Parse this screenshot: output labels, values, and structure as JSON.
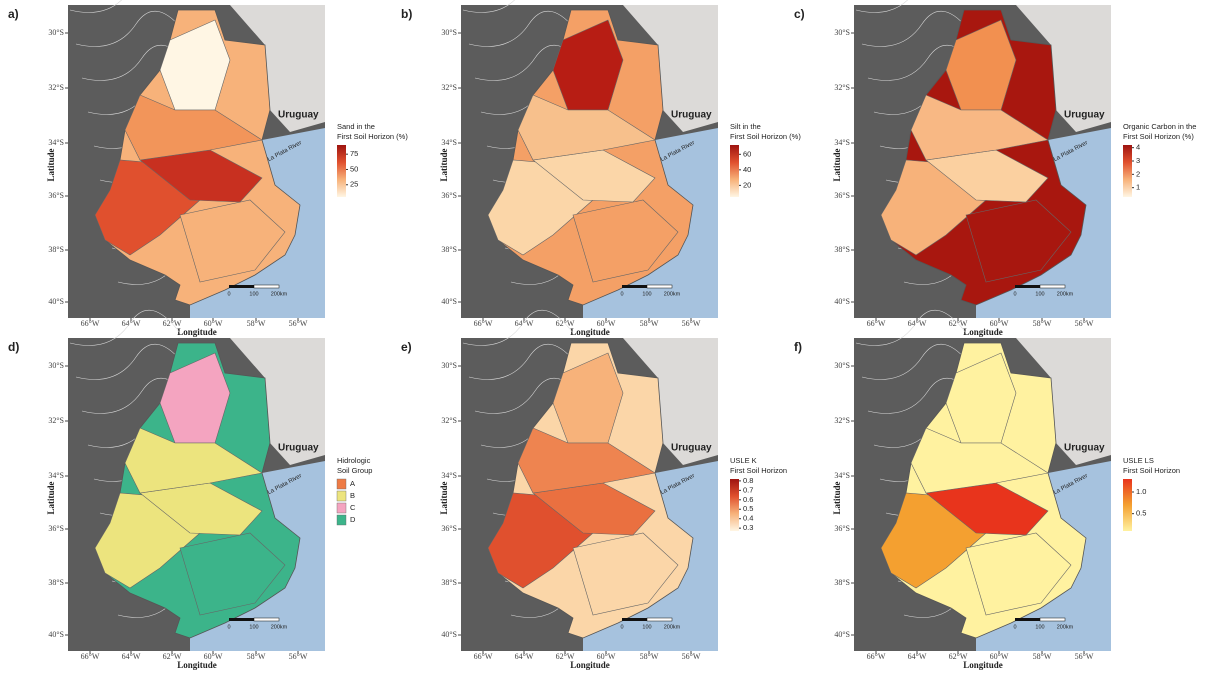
{
  "axes": {
    "lat_ticks": [
      "30°S",
      "32°S",
      "34°S",
      "36°S",
      "38°S",
      "40°S"
    ],
    "lon_ticks": [
      "66°W",
      "64°W",
      "62°W",
      "60°W",
      "58°W",
      "56°W"
    ],
    "ylabel": "Latitude",
    "xlabel": "Longitude",
    "country": "Uruguay",
    "river": "La Plata River",
    "scale": [
      "0",
      "100",
      "200km"
    ]
  },
  "panels": [
    {
      "letter": "a)",
      "legend": {
        "type": "gradient",
        "title": [
          "Sand in the",
          "First Soil Horizon (%)"
        ],
        "colors": [
          "#fff6e4",
          "#f7b27a",
          "#e0502e",
          "#9e1410"
        ],
        "lim": [
          5,
          90
        ],
        "ticks": [
          75,
          50,
          25
        ]
      }
    },
    {
      "letter": "b)",
      "legend": {
        "type": "gradient",
        "title": [
          "Silt in the",
          "First Soil Horizon (%)"
        ],
        "colors": [
          "#fff6e4",
          "#f7b27a",
          "#e0502e",
          "#9e1410"
        ],
        "lim": [
          5,
          72
        ],
        "ticks": [
          60,
          40,
          20
        ]
      }
    },
    {
      "letter": "c)",
      "legend": {
        "type": "gradient",
        "title": [
          "Organic Carbon in the",
          "First Soil Horizon (%)"
        ],
        "colors": [
          "#fff6e4",
          "#f7b27a",
          "#e0502e",
          "#9e1410"
        ],
        "lim": [
          0.3,
          4.2
        ],
        "ticks": [
          4,
          3,
          2,
          1
        ]
      }
    },
    {
      "letter": "d)",
      "legend": {
        "type": "classes",
        "title": [
          "Hidrologic",
          "Soil Group"
        ],
        "items": [
          {
            "label": "A",
            "color": "#ee7b45"
          },
          {
            "label": "B",
            "color": "#ece47e"
          },
          {
            "label": "C",
            "color": "#f4a4c0"
          },
          {
            "label": "D",
            "color": "#3cb48a"
          }
        ]
      }
    },
    {
      "letter": "e)",
      "legend": {
        "type": "gradient",
        "title": [
          "USLE K",
          "First Soil Horizon"
        ],
        "colors": [
          "#fff6e4",
          "#f7b27a",
          "#e0502e",
          "#9e1410"
        ],
        "lim": [
          0.27,
          0.82
        ],
        "ticks": [
          0.8,
          0.7,
          0.6,
          0.5,
          0.4,
          0.3
        ]
      }
    },
    {
      "letter": "f)",
      "legend": {
        "type": "gradient",
        "title": [
          "USLE LS",
          "First Soil Horizon"
        ],
        "colors": [
          "#fff2a0",
          "#f4a030",
          "#e8341c"
        ],
        "lim": [
          0.1,
          1.3
        ],
        "ticks": [
          {
            "value": 1,
            "label": "1.0"
          },
          0.5
        ]
      }
    }
  ]
}
